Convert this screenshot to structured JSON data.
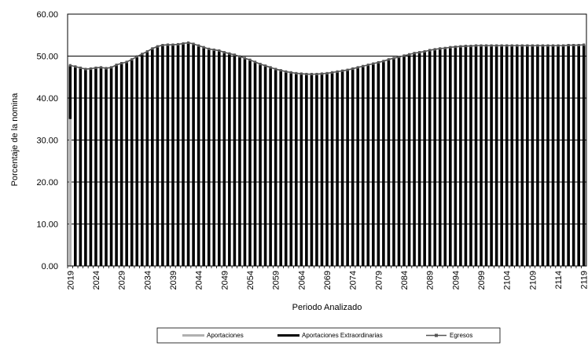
{
  "chart_data": {
    "type": "bar",
    "xlabel": "Periodo Analizado",
    "ylabel": "Porcentaje de la nomina",
    "ylim": [
      0,
      60
    ],
    "yticks": [
      "0.00",
      "10.00",
      "20.00",
      "30.00",
      "40.00",
      "50.00",
      "60.00"
    ],
    "xtick_labels": [
      "2019",
      "2024",
      "2029",
      "2034",
      "2039",
      "2044",
      "2049",
      "2054",
      "2059",
      "2064",
      "2069",
      "2074",
      "2079",
      "2084",
      "2089",
      "2094",
      "2099",
      "2104",
      "2109",
      "2114",
      "2119"
    ],
    "grid": "horizontal",
    "legend_position": "bottom",
    "x_start": 2019,
    "x_end": 2119,
    "series": [
      {
        "name": "Aportaciones",
        "kind": "bar",
        "color": "#b0b0b0",
        "values": [
          35.0
        ]
      },
      {
        "name": "Aportaciones Extraordinarias",
        "kind": "bar",
        "color": "#000000",
        "values": [
          12.8,
          47.5,
          47.2,
          46.9,
          47.0,
          47.2,
          47.3,
          47.1,
          47.3,
          47.9,
          48.3,
          48.6,
          49.2,
          49.9,
          50.5,
          51.1,
          51.8,
          52.3,
          52.6,
          52.7,
          52.7,
          52.8,
          53.0,
          53.2,
          52.9,
          52.5,
          52.1,
          51.7,
          51.5,
          51.3,
          50.9,
          50.6,
          50.3,
          49.9,
          49.5,
          49.1,
          48.6,
          48.1,
          47.7,
          47.3,
          46.9,
          46.6,
          46.3,
          46.1,
          45.9,
          45.8,
          45.7,
          45.7,
          45.7,
          45.8,
          45.9,
          46.1,
          46.3,
          46.5,
          46.7,
          47.0,
          47.3,
          47.6,
          47.9,
          48.2,
          48.5,
          48.8,
          49.2,
          49.5,
          49.8,
          50.1,
          50.4,
          50.7,
          50.9,
          51.1,
          51.4,
          51.6,
          51.8,
          51.9,
          52.1,
          52.2,
          52.3,
          52.4,
          52.4,
          52.5,
          52.5,
          52.5,
          52.5,
          52.5,
          52.5,
          52.5,
          52.5,
          52.5,
          52.5,
          52.5,
          52.5,
          52.5,
          52.5,
          52.5,
          52.5,
          52.5,
          52.5,
          52.6,
          52.6,
          52.6,
          52.7
        ]
      },
      {
        "name": "Egresos",
        "kind": "line",
        "color": "#555555",
        "values": [
          47.8,
          47.5,
          47.2,
          46.9,
          47.0,
          47.2,
          47.3,
          47.1,
          47.3,
          47.9,
          48.3,
          48.6,
          49.2,
          49.9,
          50.5,
          51.1,
          51.8,
          52.3,
          52.6,
          52.7,
          52.7,
          52.8,
          53.0,
          53.2,
          52.9,
          52.5,
          52.1,
          51.7,
          51.5,
          51.3,
          50.9,
          50.6,
          50.3,
          49.9,
          49.5,
          49.1,
          48.6,
          48.1,
          47.7,
          47.3,
          46.9,
          46.6,
          46.3,
          46.1,
          45.9,
          45.8,
          45.7,
          45.7,
          45.7,
          45.8,
          45.9,
          46.1,
          46.3,
          46.5,
          46.7,
          47.0,
          47.3,
          47.6,
          47.9,
          48.2,
          48.5,
          48.8,
          49.2,
          49.5,
          49.8,
          50.1,
          50.4,
          50.7,
          50.9,
          51.1,
          51.4,
          51.6,
          51.8,
          51.9,
          52.1,
          52.2,
          52.3,
          52.4,
          52.4,
          52.5,
          52.5,
          52.5,
          52.5,
          52.5,
          52.5,
          52.5,
          52.5,
          52.5,
          52.5,
          52.5,
          52.5,
          52.5,
          52.5,
          52.5,
          52.5,
          52.5,
          52.5,
          52.6,
          52.6,
          52.6,
          52.7
        ]
      }
    ]
  }
}
